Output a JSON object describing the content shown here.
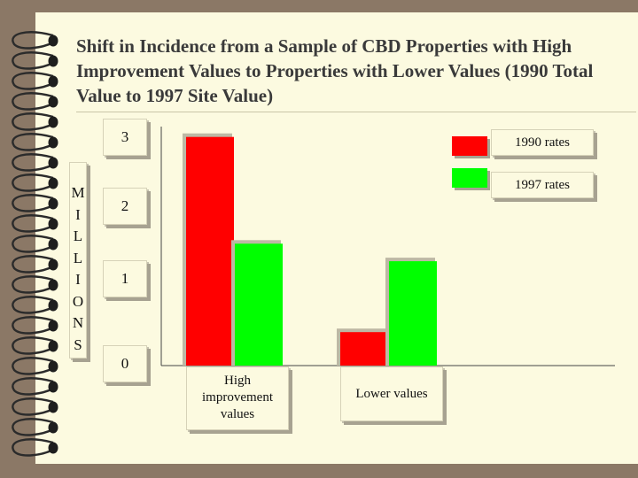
{
  "slide": {
    "title": "Shift in Incidence from a Sample of CBD Properties with High Improvement Values to Properties with Lower Values (1990 Total Value to 1997 Site Value)"
  },
  "chart_data": {
    "type": "bar",
    "title": "",
    "ylabel": "MILLIONS",
    "ylabel_letters": [
      "M",
      "I",
      "L",
      "L",
      "I",
      "O",
      "N",
      "S"
    ],
    "ylim": [
      0,
      3
    ],
    "yticks": [
      "0",
      "1",
      "2",
      "3"
    ],
    "categories": [
      "High improvement values",
      "Lower values"
    ],
    "category_lines": [
      [
        "High",
        "improvement",
        "values"
      ],
      [
        "Lower values"
      ]
    ],
    "series": [
      {
        "name": "1990 rates",
        "values": [
          2.87,
          0.42
        ],
        "color": "#ff0000"
      },
      {
        "name": "1997 rates",
        "values": [
          1.53,
          1.31
        ],
        "color": "#00ff00"
      }
    ],
    "legend": "top-right",
    "grid": false
  }
}
